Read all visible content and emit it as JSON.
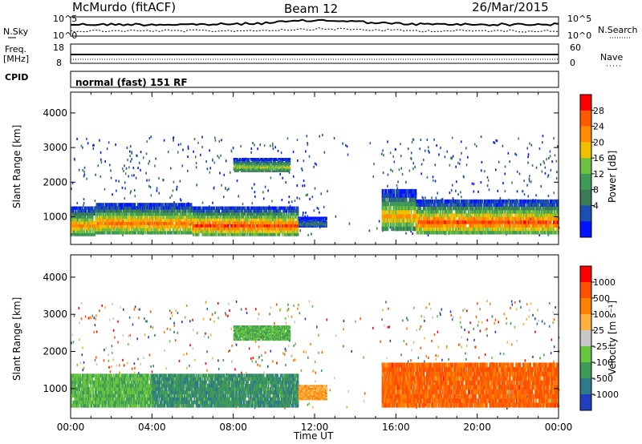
{
  "header": {
    "station": "McMurdo (fitACF)",
    "beam": "Beam 12",
    "date": "26/Mar/2015"
  },
  "strip": {
    "nsky_label": "N.Sky",
    "nsearch_label": "N.Search",
    "noise_ticks": [
      "10^5",
      "10^0"
    ],
    "freq_label": "Freq.",
    "freq_unit": "[MHz]",
    "freq_ticks": [
      "18",
      "8"
    ],
    "nave_label": "Nave",
    "nave_ticks": [
      "60",
      "0"
    ],
    "cpid_label": "CPID",
    "cpid_text": "normal (fast) 151 RF"
  },
  "chart_data": [
    {
      "type": "heatmap",
      "name": "power",
      "ylabel": "Slant Range [km]",
      "yticks": [
        1000,
        2000,
        3000,
        4000
      ],
      "ylim": [
        200,
        4600
      ],
      "xlim": [
        0,
        24
      ],
      "colorbar": {
        "label": "Power [dB]",
        "ticks": [
          "28",
          "24",
          "20",
          "16",
          "12",
          "8",
          "4"
        ],
        "colors": [
          "#0014ff",
          "#1d4fb0",
          "#3a7a55",
          "#3f9a57",
          "#6fbf40",
          "#f0c000",
          "#ff8c00",
          "#ff5a00",
          "#ff0000"
        ]
      },
      "bands": [
        {
          "x0": 0.0,
          "x1": 1.2,
          "y0": 450,
          "y1": 1300,
          "level": 0.72
        },
        {
          "x0": 1.2,
          "x1": 6.0,
          "y0": 500,
          "y1": 1400,
          "level": 0.78
        },
        {
          "x0": 6.0,
          "x1": 11.2,
          "y0": 450,
          "y1": 1300,
          "level": 0.86
        },
        {
          "x0": 11.2,
          "x1": 12.6,
          "y0": 700,
          "y1": 1000,
          "level": 0.25
        },
        {
          "x0": 15.3,
          "x1": 17.0,
          "y0": 600,
          "y1": 1800,
          "level": 0.7
        },
        {
          "x0": 17.0,
          "x1": 24.0,
          "y0": 500,
          "y1": 1500,
          "level": 0.85
        },
        {
          "x0": 8.0,
          "x1": 10.8,
          "y0": 2300,
          "y1": 2700,
          "level": 0.55
        }
      ]
    },
    {
      "type": "heatmap",
      "name": "velocity",
      "xlabel": "Time UT",
      "ylabel": "Slant Range [km]",
      "yticks": [
        1000,
        2000,
        3000,
        4000
      ],
      "ylim": [
        200,
        4600
      ],
      "xlim": [
        0,
        24
      ],
      "xticks": [
        "00:00",
        "04:00",
        "08:00",
        "12:00",
        "16:00",
        "20:00",
        "00:00"
      ],
      "colorbar": {
        "label": "Velocity [m s⁻¹]",
        "ticks": [
          "1000",
          "500",
          "100",
          "25",
          "-25",
          "-100",
          "-500",
          "-1000"
        ],
        "colors": [
          "#1f3fbf",
          "#2e7a8a",
          "#3f9a57",
          "#66c440",
          "#c8c8c8",
          "#ffb040",
          "#ff8000",
          "#ff5000",
          "#ff0000"
        ]
      },
      "bands": [
        {
          "x0": 0.0,
          "x1": 4.0,
          "y0": 500,
          "y1": 1400,
          "vel": 0.35
        },
        {
          "x0": 4.0,
          "x1": 11.2,
          "y0": 500,
          "y1": 1400,
          "vel": 0.25
        },
        {
          "x0": 11.2,
          "x1": 12.6,
          "y0": 700,
          "y1": 1100,
          "vel": 0.65
        },
        {
          "x0": 15.3,
          "x1": 24.0,
          "y0": 500,
          "y1": 1700,
          "vel": 0.8
        },
        {
          "x0": 8.0,
          "x1": 10.8,
          "y0": 2300,
          "y1": 2700,
          "vel": 0.35
        }
      ]
    }
  ]
}
